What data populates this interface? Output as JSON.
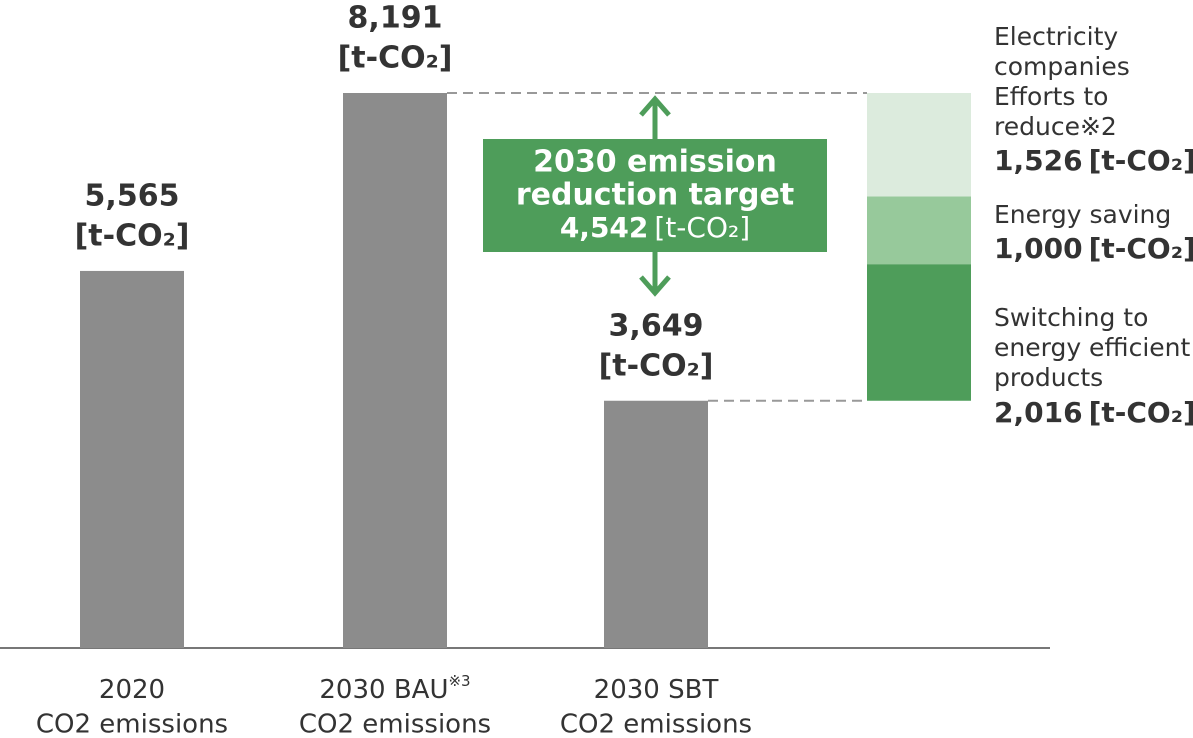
{
  "chart_data": {
    "type": "bar",
    "categories": [
      "2020",
      "2030 BAU",
      "2030 SBT"
    ],
    "category_notes": [
      null,
      "※3",
      null
    ],
    "category_sublabel": "CO2 emissions",
    "values": [
      5565,
      8191,
      3649
    ],
    "value_labels": [
      "5,565",
      "8,191",
      "3,649"
    ],
    "unit": "[t-CO₂]",
    "color": "#8c8c8c",
    "ylim": [
      0,
      8191
    ],
    "target": {
      "label": [
        "2030 emission",
        "reduction target"
      ],
      "value": 4542,
      "value_label": "4,542",
      "color": "#4e9d5a"
    },
    "reductions": [
      {
        "name": [
          "Switching to",
          "energy efficient",
          "products"
        ],
        "value": 2016,
        "value_label": "2,016",
        "color": "#4e9d5a"
      },
      {
        "name": [
          "Energy saving"
        ],
        "value": 1000,
        "value_label": "1,000",
        "color": "#97c99b"
      },
      {
        "name": [
          "Electricity",
          "companies",
          "Efforts to",
          "reduce※2"
        ],
        "value": 1526,
        "value_label": "1,526",
        "color": "#dcebdd"
      }
    ]
  }
}
